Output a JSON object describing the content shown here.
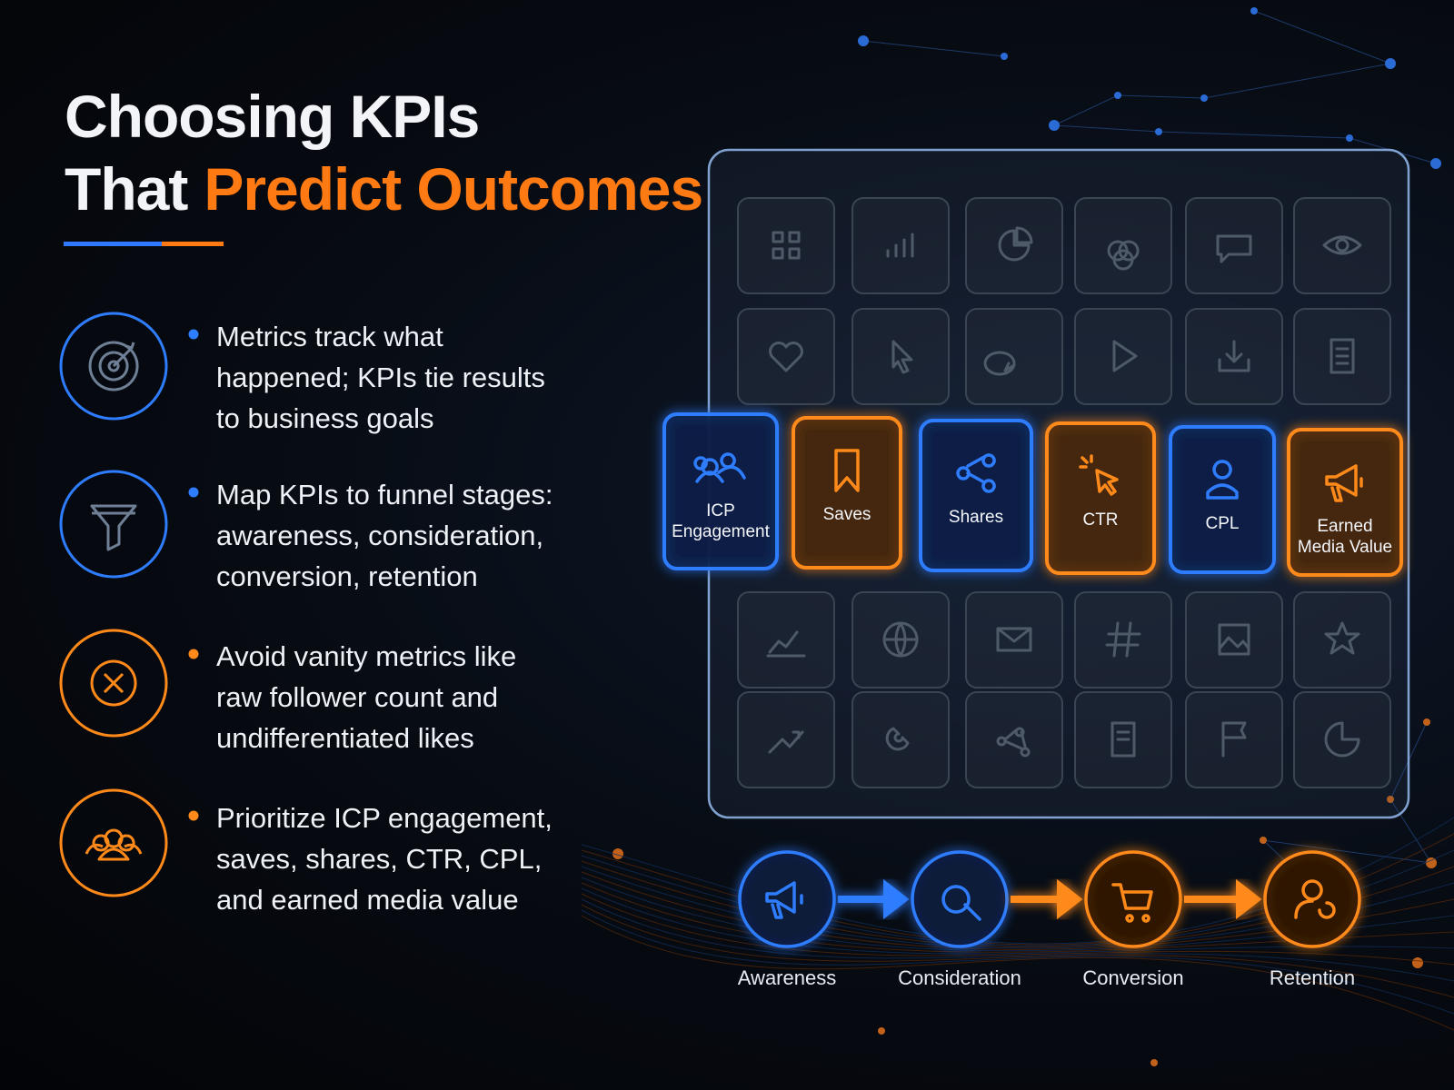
{
  "title": {
    "line1": "Choosing KPIs",
    "line2": "That",
    "highlight": "Predict Outcomes"
  },
  "bullets": [
    "Metrics track what happened; KPIs tie results to business goals",
    "Map KPIs to funnel stages: awareness, consideration, conversion, retention",
    "Avoid vanity metrics like raw follower count and undifferentiated likes",
    "Prioritize ICP engagement, saves, shares, CTR, CPL, and earned media value"
  ],
  "kpi_cards": [
    "ICP Engagement",
    "Saves",
    "Shares",
    "CTR",
    "CPL",
    "Earned Media Value"
  ],
  "funnel": [
    "Awareness",
    "Consideration",
    "Conversion",
    "Retention"
  ]
}
